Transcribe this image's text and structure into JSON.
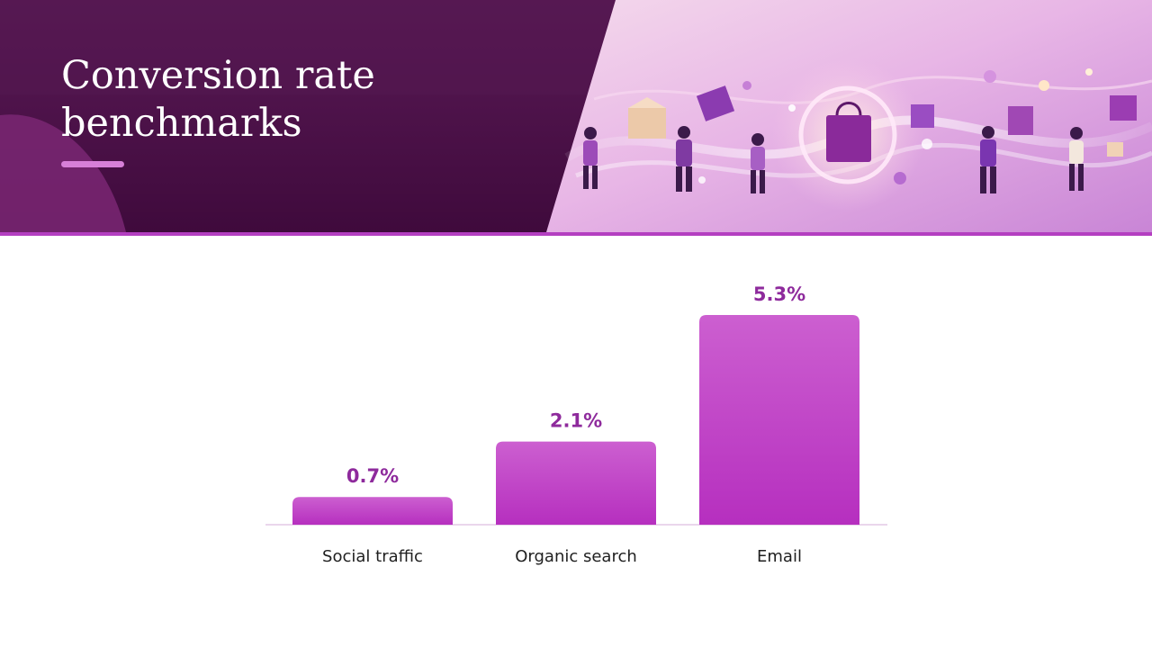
{
  "header": {
    "title_line1": "Conversion rate",
    "title_line2": "benchmarks"
  },
  "colors": {
    "header_dark": "#4a1046",
    "accent": "#b43fc1",
    "bar_top": "#cc5fd0",
    "bar_bottom": "#b62fbf",
    "value_label": "#8e2a9c"
  },
  "chart_data": {
    "type": "bar",
    "categories": [
      "Social traffic",
      "Organic search",
      "Email"
    ],
    "values": [
      0.7,
      2.1,
      5.3
    ],
    "value_labels": [
      "0.7%",
      "2.1%",
      "5.3%"
    ],
    "ylim": [
      0,
      5.3
    ],
    "grid": false,
    "legend": "none"
  }
}
